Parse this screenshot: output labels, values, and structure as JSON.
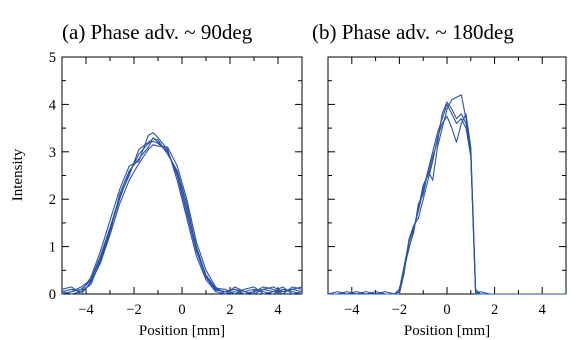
{
  "chart_data": [
    {
      "type": "line",
      "title": "(a) Phase adv. ~ 90deg",
      "xlabel": "Position [mm]",
      "ylabel": "Intensity",
      "xlim": [
        -5,
        5
      ],
      "ylim": [
        0,
        5
      ],
      "xticks": [
        -4,
        -2,
        0,
        2,
        4
      ],
      "yticks": [
        0,
        1,
        2,
        3,
        4,
        5
      ],
      "color": "#2a52a8",
      "x": [
        -5.0,
        -4.6,
        -4.2,
        -3.8,
        -3.4,
        -3.0,
        -2.6,
        -2.2,
        -1.8,
        -1.4,
        -1.2,
        -1.0,
        -0.6,
        -0.2,
        0.2,
        0.6,
        1.0,
        1.4,
        1.8,
        2.2,
        2.6,
        3.0,
        3.4,
        3.8,
        4.2,
        4.6,
        5.0
      ],
      "series": [
        {
          "values": [
            0.0,
            0.05,
            0.1,
            0.28,
            0.75,
            1.35,
            2.0,
            2.55,
            2.95,
            3.18,
            3.22,
            3.18,
            3.0,
            2.55,
            1.8,
            1.0,
            0.38,
            0.1,
            0.05,
            0.1,
            0.05,
            0.0,
            0.1,
            0.15,
            0.05,
            0.1,
            0.05
          ]
        },
        {
          "values": [
            0.05,
            0.0,
            0.05,
            0.35,
            0.9,
            1.55,
            2.2,
            2.7,
            2.8,
            3.35,
            3.4,
            3.3,
            3.05,
            2.4,
            1.6,
            0.8,
            0.3,
            0.05,
            0.0,
            0.15,
            0.05,
            0.1,
            0.05,
            0.0,
            0.1,
            0.05,
            0.0
          ]
        },
        {
          "values": [
            0.1,
            0.15,
            0.0,
            0.25,
            0.65,
            1.25,
            1.9,
            2.4,
            2.75,
            3.05,
            3.15,
            3.12,
            3.1,
            2.7,
            2.0,
            1.1,
            0.5,
            0.15,
            0.0,
            0.05,
            0.0,
            0.05,
            0.15,
            0.1,
            0.0,
            0.15,
            0.1
          ]
        },
        {
          "values": [
            0.0,
            0.05,
            0.15,
            0.3,
            0.8,
            1.4,
            2.05,
            2.5,
            3.05,
            3.2,
            3.28,
            3.25,
            2.95,
            2.6,
            1.9,
            0.95,
            0.4,
            0.12,
            0.1,
            0.0,
            0.1,
            0.15,
            0.0,
            0.05,
            0.15,
            0.0,
            0.05
          ]
        },
        {
          "values": [
            0.05,
            0.1,
            0.05,
            0.2,
            0.7,
            1.3,
            2.1,
            2.6,
            2.85,
            3.1,
            3.3,
            3.2,
            3.02,
            2.5,
            1.7,
            0.9,
            0.35,
            0.08,
            0.05,
            0.1,
            0.0,
            0.05,
            0.1,
            0.05,
            0.05,
            0.1,
            0.15
          ]
        }
      ]
    },
    {
      "type": "line",
      "title": "(b) Phase adv. ~ 180deg",
      "xlabel": "Position [mm]",
      "ylabel": "",
      "xlim": [
        -5,
        5
      ],
      "ylim": [
        0,
        5
      ],
      "xticks": [
        -4,
        -2,
        0,
        2,
        4
      ],
      "yticks": [
        0,
        1,
        2,
        3,
        4,
        5
      ],
      "color": "#2a52a8",
      "x": [
        -5.0,
        -4.6,
        -4.2,
        -3.8,
        -3.4,
        -3.0,
        -2.6,
        -2.2,
        -2.0,
        -1.8,
        -1.6,
        -1.4,
        -1.2,
        -1.0,
        -0.8,
        -0.6,
        -0.4,
        -0.2,
        0.0,
        0.2,
        0.4,
        0.6,
        0.8,
        1.0,
        1.2,
        1.4,
        1.8,
        2.2,
        2.6,
        3.0,
        3.4,
        3.8,
        4.2,
        4.6,
        5.0
      ],
      "series": [
        {
          "values": [
            0.0,
            0.0,
            0.05,
            0.0,
            0.0,
            0.0,
            0.0,
            0.0,
            0.1,
            0.6,
            1.1,
            1.4,
            1.75,
            2.2,
            2.6,
            3.0,
            3.4,
            3.7,
            4.0,
            3.8,
            3.6,
            3.7,
            3.5,
            2.9,
            0.05,
            0.0,
            0.0,
            0.0,
            0.0,
            0.0,
            0.0,
            0.0,
            0.0,
            0.0,
            0.0
          ]
        },
        {
          "values": [
            0.0,
            0.05,
            0.0,
            0.0,
            0.05,
            0.0,
            0.0,
            0.0,
            0.05,
            0.5,
            1.0,
            1.3,
            1.9,
            2.1,
            2.6,
            2.4,
            3.1,
            3.5,
            3.9,
            4.1,
            4.15,
            4.2,
            3.7,
            3.0,
            0.0,
            0.0,
            0.0,
            0.0,
            0.0,
            0.0,
            0.0,
            0.0,
            0.0,
            0.0,
            0.0
          ]
        },
        {
          "values": [
            0.0,
            0.0,
            0.0,
            0.05,
            0.0,
            0.05,
            0.0,
            0.0,
            0.0,
            0.45,
            1.15,
            1.45,
            1.6,
            2.0,
            2.4,
            2.8,
            3.3,
            3.6,
            3.75,
            3.5,
            3.2,
            3.6,
            3.8,
            3.1,
            0.1,
            0.0,
            0.0,
            0.0,
            0.0,
            0.0,
            0.0,
            0.0,
            0.0,
            0.0,
            0.0
          ]
        },
        {
          "values": [
            0.0,
            0.0,
            0.0,
            0.0,
            0.0,
            0.0,
            0.05,
            0.0,
            0.1,
            0.55,
            0.95,
            1.35,
            1.8,
            2.3,
            2.5,
            2.9,
            3.2,
            3.8,
            4.05,
            3.9,
            3.7,
            3.8,
            3.6,
            2.95,
            0.0,
            0.05,
            0.0,
            0.0,
            0.0,
            0.0,
            0.0,
            0.0,
            0.0,
            0.0,
            0.0
          ]
        }
      ]
    }
  ]
}
